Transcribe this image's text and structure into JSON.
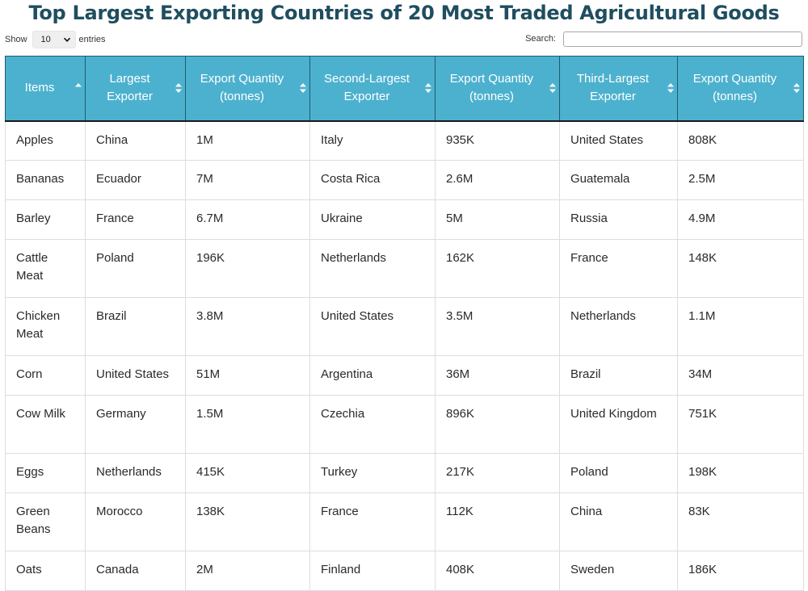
{
  "title": "Top Largest Exporting Countries of 20 Most Traded Agricultural Goods",
  "length_control": {
    "show_label": "Show",
    "selected": "10",
    "entries_label": "entries"
  },
  "search": {
    "label": "Search:",
    "value": ""
  },
  "columns": [
    "Items",
    "Largest Exporter",
    "Export Quantity (tonnes)",
    "Second-Largest Exporter",
    "Export Quantity (tonnes)",
    "Third-Largest Exporter",
    "Export Quantity (tonnes)"
  ],
  "sorted_column": 0,
  "rows": [
    [
      "Apples",
      "China",
      "1M",
      "Italy",
      "935K",
      "United States",
      "808K"
    ],
    [
      "Bananas",
      "Ecuador",
      "7M",
      "Costa Rica",
      "2.6M",
      "Guatemala",
      "2.5M"
    ],
    [
      "Barley",
      "France",
      "6.7M",
      "Ukraine",
      "5M",
      "Russia",
      "4.9M"
    ],
    [
      "Cattle Meat",
      "Poland",
      "196K",
      "Netherlands",
      "162K",
      "France",
      "148K"
    ],
    [
      "Chicken Meat",
      "Brazil",
      "3.8M",
      "United States",
      "3.5M",
      "Netherlands",
      "1.1M"
    ],
    [
      "Corn",
      "United States",
      "51M",
      "Argentina",
      "36M",
      "Brazil",
      "34M"
    ],
    [
      "Cow Milk",
      "Germany",
      "1.5M",
      "Czechia",
      "896K",
      "United Kingdom",
      "751K"
    ],
    [
      "Eggs",
      "Netherlands",
      "415K",
      "Turkey",
      "217K",
      "Poland",
      "198K"
    ],
    [
      "Green Beans",
      "Morocco",
      "138K",
      "France",
      "112K",
      "China",
      "83K"
    ],
    [
      "Oats",
      "Canada",
      "2M",
      "Finland",
      "408K",
      "Sweden",
      "186K"
    ]
  ]
}
